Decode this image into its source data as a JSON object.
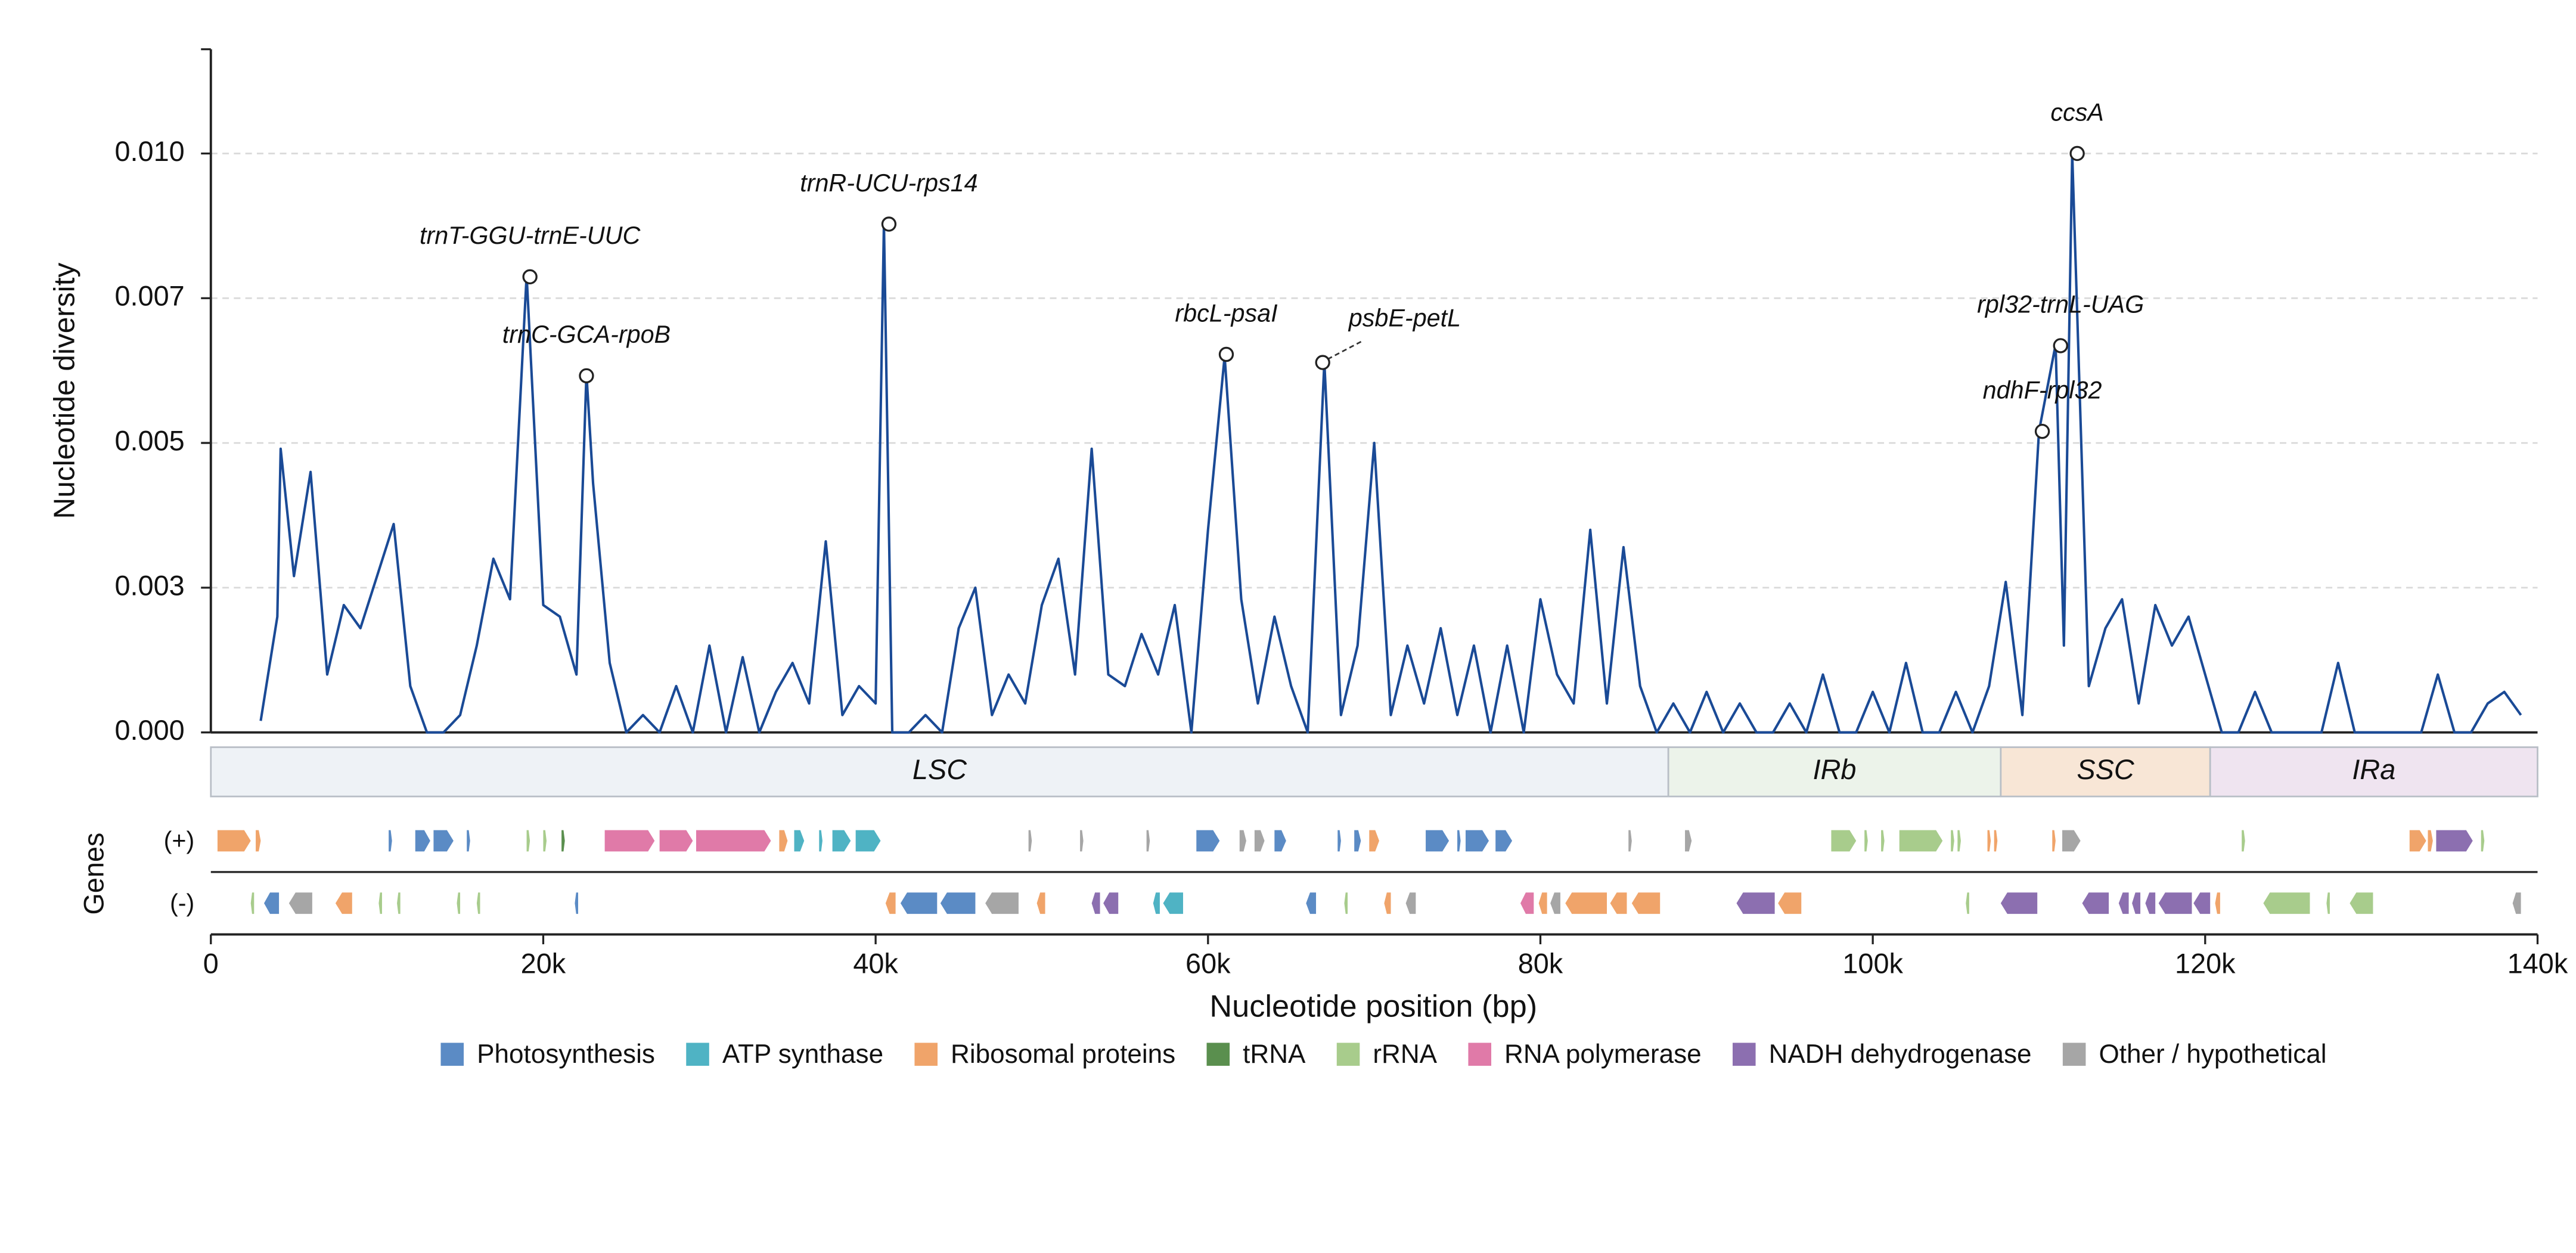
{
  "chart_data": {
    "type": "line",
    "y_label": "Nucleotide diversity",
    "x_label": "Nucleotide position (bp)",
    "xlim": [
      0,
      140000
    ],
    "xticks": [
      0,
      {
        "value": 20000,
        "label": "20k"
      },
      {
        "value": 40000,
        "label": "40k"
      },
      {
        "value": 60000,
        "label": "60k"
      },
      {
        "value": 80000,
        "label": "80k"
      },
      {
        "value": 100000,
        "label": "100k"
      },
      {
        "value": 120000,
        "label": "120k"
      },
      {
        "value": 140000,
        "label": "140k"
      }
    ],
    "ylim": [
      0,
      0.0118
    ],
    "yticks": [
      {
        "value": 0,
        "label": "0.000"
      },
      {
        "value": 0.0025,
        "label": "0.003"
      },
      0.005,
      {
        "value": 0.0075,
        "label": "0.007"
      },
      {
        "value": 0.01,
        "label": "0.010"
      }
    ],
    "grid": true,
    "x": [
      3000,
      4000,
      4200,
      5000,
      6000,
      7000,
      8000,
      9000,
      10000,
      11000,
      12000,
      13000,
      14000,
      15000,
      16000,
      17000,
      18000,
      19000,
      20000,
      21000,
      22000,
      22600,
      23000,
      24000,
      25000,
      26000,
      27000,
      28000,
      29000,
      30000,
      31000,
      32000,
      33000,
      34000,
      35000,
      36000,
      37000,
      38000,
      39000,
      40000,
      40500,
      41000,
      42000,
      43000,
      44000,
      45000,
      46000,
      47000,
      48000,
      49000,
      50000,
      51000,
      52000,
      53000,
      54000,
      55000,
      56000,
      57000,
      58000,
      59000,
      60000,
      61000,
      62000,
      63000,
      64000,
      65000,
      66000,
      67000,
      68000,
      69000,
      70000,
      71000,
      72000,
      73000,
      74000,
      75000,
      76000,
      77000,
      78000,
      79000,
      80000,
      81000,
      82000,
      83000,
      84000,
      85000,
      86000,
      87000,
      88000,
      89000,
      90000,
      91000,
      92000,
      93000,
      94000,
      95000,
      96000,
      97000,
      98000,
      99000,
      100000,
      101000,
      102000,
      103000,
      104000,
      105000,
      106000,
      107000,
      108000,
      109000,
      110000,
      111000,
      111500,
      112000,
      113000,
      114000,
      115000,
      116000,
      117000,
      118000,
      119000,
      120000,
      121000,
      122000,
      123000,
      124000,
      125000,
      126000,
      127000,
      128000,
      129000,
      130000,
      131000,
      132000,
      133000,
      134000,
      135000,
      136000,
      137000,
      138000,
      139000
    ],
    "series": [
      {
        "color": "#1a4a96",
        "values": [
          0.0002,
          0.002,
          0.0049,
          0.0027,
          0.0045,
          0.001,
          0.0022,
          0.0018,
          0.0027,
          0.0036,
          0.0008,
          0,
          0,
          0.0003,
          0.0015,
          0.003,
          0.0023,
          0.0079,
          0.0022,
          0.002,
          0.001,
          0.0062,
          0.0043,
          0.0012,
          0,
          0.0003,
          0,
          0.0008,
          0,
          0.0015,
          0,
          0.0013,
          0,
          0.0007,
          0.0012,
          0.0005,
          0.0033,
          0.0003,
          0.0008,
          0.0005,
          0.0088,
          0,
          0,
          0.0003,
          0,
          0.0018,
          0.0025,
          0.0003,
          0.001,
          0.0005,
          0.0022,
          0.003,
          0.001,
          0.0049,
          0.001,
          0.0008,
          0.0017,
          0.001,
          0.0022,
          0,
          0.0035,
          0.0065,
          0.0023,
          0.0005,
          0.002,
          0.0008,
          0,
          0.0064,
          0.0003,
          0.0015,
          0.005,
          0.0003,
          0.0015,
          0.0005,
          0.0018,
          0.0003,
          0.0015,
          0,
          0.0015,
          0,
          0.0023,
          0.001,
          0.0005,
          0.0035,
          0.0005,
          0.0032,
          0.0008,
          0,
          0.0005,
          0,
          0.0007,
          0,
          0.0005,
          0,
          0,
          0.0005,
          0,
          0.001,
          0,
          0,
          0.0007,
          0,
          0.0012,
          0,
          0,
          0.0007,
          0,
          0.0008,
          0.0026,
          0.0003,
          0.0052,
          0.0067,
          0.0015,
          0.01,
          0.0008,
          0.0018,
          0.0023,
          0.0005,
          0.0022,
          0.0015,
          0.002,
          0.001,
          0,
          0,
          0.0007,
          0,
          0,
          0,
          0,
          0.0012,
          0,
          0,
          0,
          0,
          0,
          0.001,
          0,
          0,
          0.0005,
          0.0007,
          0.0003
        ]
      }
    ],
    "annotations": [
      {
        "label": "trnT-GGU-trnE-UUC",
        "x": 19200,
        "y": 0.00787
      },
      {
        "label": "trnC-GCA-rpoB",
        "x": 22600,
        "y": 0.00616
      },
      {
        "label": "trnR-UCU-rps14",
        "x": 40800,
        "y": 0.00878
      },
      {
        "label": "rbcL-psaI",
        "x": 61100,
        "y": 0.00653
      },
      {
        "label": "psbE-petL",
        "x": 66900,
        "y": 0.00639
      },
      {
        "label": "ccsA",
        "x": 112300,
        "y": 0.01
      },
      {
        "label": "rpl32-trnL-UAG",
        "x": 111300,
        "y": 0.00668
      },
      {
        "label": "ndhF-rpl32",
        "x": 110200,
        "y": 0.0052
      }
    ],
    "regions": [
      {
        "name": "LSC",
        "start": 0,
        "end": 87700,
        "color": "#eef2f6"
      },
      {
        "name": "IRb",
        "start": 87700,
        "end": 107700,
        "color": "#ecf3ea"
      },
      {
        "name": "SSC",
        "start": 107700,
        "end": 120300,
        "color": "#f8e6d6"
      },
      {
        "name": "IRa",
        "start": 120300,
        "end": 140000,
        "color": "#efe4f0"
      }
    ],
    "genes_label": "Genes",
    "gene_tracks": [
      {
        "label": "(+)",
        "genes": [
          [
            400,
            2400,
            2
          ],
          [
            2700,
            3000,
            2
          ],
          [
            10700,
            10900,
            0
          ],
          [
            12300,
            13200,
            0
          ],
          [
            13400,
            14600,
            0
          ],
          [
            15400,
            15600,
            0
          ],
          [
            19000,
            19200,
            4
          ],
          [
            20000,
            20200,
            4
          ],
          [
            21100,
            21300,
            3
          ],
          [
            23700,
            26700,
            5
          ],
          [
            27000,
            29000,
            5
          ],
          [
            29200,
            33700,
            5
          ],
          [
            34200,
            34700,
            2
          ],
          [
            35100,
            35700,
            1
          ],
          [
            36600,
            36800,
            1
          ],
          [
            37400,
            38500,
            1
          ],
          [
            38800,
            40300,
            1
          ],
          [
            49200,
            49400,
            7
          ],
          [
            52300,
            52500,
            7
          ],
          [
            56300,
            56500,
            7
          ],
          [
            59300,
            60700,
            0
          ],
          [
            61900,
            62300,
            7
          ],
          [
            62800,
            63400,
            7
          ],
          [
            64000,
            64700,
            0
          ],
          [
            67800,
            68000,
            0
          ],
          [
            68800,
            69200,
            0
          ],
          [
            69700,
            70300,
            2
          ],
          [
            73100,
            74500,
            0
          ],
          [
            75000,
            75200,
            0
          ],
          [
            75500,
            76900,
            0
          ],
          [
            77300,
            78300,
            0
          ],
          [
            85300,
            85500,
            7
          ],
          [
            88700,
            89100,
            7
          ],
          [
            97500,
            99000,
            4
          ],
          [
            99500,
            99700,
            4
          ],
          [
            100500,
            100700,
            4
          ],
          [
            101600,
            104200,
            4
          ],
          [
            104700,
            104900,
            4
          ],
          [
            105100,
            105300,
            4
          ],
          [
            106900,
            107100,
            2
          ],
          [
            107300,
            107500,
            2
          ],
          [
            110800,
            111000,
            2
          ],
          [
            111400,
            112500,
            7
          ],
          [
            122200,
            122400,
            4
          ],
          [
            132300,
            133300,
            2
          ],
          [
            133400,
            133700,
            2
          ],
          [
            133900,
            136100,
            6
          ],
          [
            136600,
            136800,
            4
          ]
        ]
      },
      {
        "label": "(-)",
        "genes": [
          [
            2400,
            2600,
            4
          ],
          [
            3200,
            4100,
            0
          ],
          [
            4700,
            6100,
            7
          ],
          [
            7500,
            8500,
            2
          ],
          [
            10100,
            10300,
            4
          ],
          [
            11200,
            11400,
            4
          ],
          [
            14800,
            15000,
            4
          ],
          [
            16000,
            16200,
            4
          ],
          [
            21900,
            22100,
            0
          ],
          [
            40600,
            41200,
            2
          ],
          [
            41500,
            43700,
            0
          ],
          [
            43900,
            46000,
            0
          ],
          [
            46600,
            48600,
            7
          ],
          [
            49700,
            50200,
            2
          ],
          [
            53000,
            53500,
            6
          ],
          [
            53700,
            54600,
            6
          ],
          [
            56700,
            57100,
            1
          ],
          [
            57300,
            58500,
            1
          ],
          [
            65900,
            66500,
            0
          ],
          [
            68200,
            68400,
            4
          ],
          [
            70600,
            71000,
            2
          ],
          [
            71900,
            72500,
            7
          ],
          [
            78800,
            79600,
            5
          ],
          [
            79900,
            80400,
            2
          ],
          [
            80600,
            81200,
            7
          ],
          [
            81500,
            84000,
            2
          ],
          [
            84200,
            85200,
            2
          ],
          [
            85500,
            87200,
            2
          ],
          [
            91800,
            94100,
            6
          ],
          [
            94300,
            95700,
            2
          ],
          [
            105600,
            105800,
            4
          ],
          [
            107700,
            109900,
            6
          ],
          [
            112600,
            114200,
            6
          ],
          [
            114800,
            115400,
            6
          ],
          [
            115600,
            116100,
            6
          ],
          [
            116400,
            117000,
            6
          ],
          [
            117200,
            119200,
            6
          ],
          [
            119300,
            120300,
            6
          ],
          [
            120600,
            120900,
            2
          ],
          [
            123500,
            126300,
            4
          ],
          [
            127300,
            127500,
            4
          ],
          [
            128700,
            130100,
            4
          ],
          [
            138500,
            139000,
            7
          ]
        ]
      }
    ],
    "legend": [
      {
        "name": "Photosynthesis",
        "color": "#5b8bc5"
      },
      {
        "name": "ATP synthase",
        "color": "#4fb3c4"
      },
      {
        "name": "Ribosomal proteins",
        "color": "#f0a46a"
      },
      {
        "name": "tRNA",
        "color": "#5a8f4e"
      },
      {
        "name": "rRNA",
        "color": "#a8cc8c"
      },
      {
        "name": "RNA polymerase",
        "color": "#e07aa8"
      },
      {
        "name": "NADH dehydrogenase",
        "color": "#8c6fb0"
      },
      {
        "name": "Other / hypothetical",
        "color": "#a6a6a6"
      }
    ]
  }
}
